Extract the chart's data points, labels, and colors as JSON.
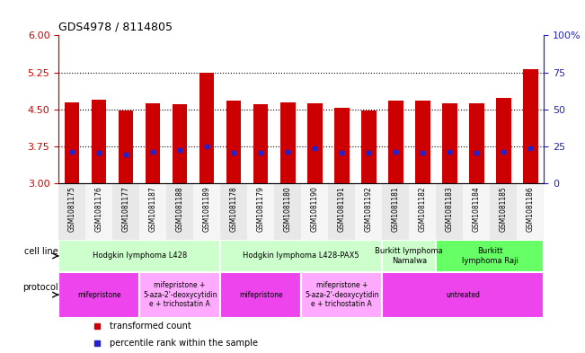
{
  "title": "GDS4978 / 8114805",
  "samples": [
    "GSM1081175",
    "GSM1081176",
    "GSM1081177",
    "GSM1081187",
    "GSM1081188",
    "GSM1081189",
    "GSM1081178",
    "GSM1081179",
    "GSM1081180",
    "GSM1081190",
    "GSM1081191",
    "GSM1081192",
    "GSM1081181",
    "GSM1081182",
    "GSM1081183",
    "GSM1081184",
    "GSM1081185",
    "GSM1081186"
  ],
  "transformed_count": [
    4.65,
    4.7,
    4.48,
    4.63,
    4.6,
    5.25,
    4.68,
    4.6,
    4.65,
    4.63,
    4.53,
    4.47,
    4.67,
    4.67,
    4.62,
    4.62,
    4.73,
    5.32
  ],
  "percentile_rank": [
    3.65,
    3.62,
    3.58,
    3.65,
    3.68,
    3.75,
    3.63,
    3.63,
    3.65,
    3.72,
    3.63,
    3.62,
    3.65,
    3.62,
    3.65,
    3.62,
    3.65,
    3.72
  ],
  "ylim_left": [
    3.0,
    6.0
  ],
  "ylim_right": [
    0,
    100
  ],
  "yticks_left": [
    3.0,
    3.75,
    4.5,
    5.25,
    6.0
  ],
  "yticks_right": [
    0,
    25,
    50,
    75,
    100
  ],
  "hlines": [
    3.75,
    4.5,
    5.25
  ],
  "bar_color": "#cc0000",
  "percentile_color": "#2222cc",
  "cell_line_groups": [
    {
      "label": "Hodgkin lymphoma L428",
      "start": 0,
      "end": 6,
      "color": "#ccffcc"
    },
    {
      "label": "Hodgkin lymphoma L428-PAX5",
      "start": 6,
      "end": 12,
      "color": "#ccffcc"
    },
    {
      "label": "Burkitt lymphoma\nNamalwa",
      "start": 12,
      "end": 14,
      "color": "#ccffcc"
    },
    {
      "label": "Burkitt\nlymphoma Raji",
      "start": 14,
      "end": 18,
      "color": "#66ff66"
    }
  ],
  "protocol_groups": [
    {
      "label": "mifepristone",
      "start": 0,
      "end": 3,
      "color": "#ee44ee"
    },
    {
      "label": "mifepristone +\n5-aza-2'-deoxycytidin\ne + trichostatin A",
      "start": 3,
      "end": 6,
      "color": "#ffaaff"
    },
    {
      "label": "mifepristone",
      "start": 6,
      "end": 9,
      "color": "#ee44ee"
    },
    {
      "label": "mifepristone +\n5-aza-2'-deoxycytidin\ne + trichostatin A",
      "start": 9,
      "end": 12,
      "color": "#ffaaff"
    },
    {
      "label": "untreated",
      "start": 12,
      "end": 18,
      "color": "#ee44ee"
    }
  ],
  "legend_items": [
    {
      "label": "transformed count",
      "color": "#cc0000"
    },
    {
      "label": "percentile rank within the sample",
      "color": "#2222cc"
    }
  ],
  "left_axis_color": "#cc0000",
  "right_axis_color": "#2222cc",
  "bg_color": "white",
  "bar_width": 0.55
}
